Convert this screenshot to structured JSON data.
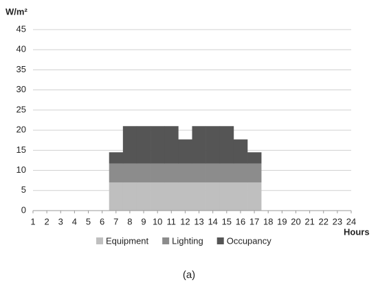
{
  "chart_data": {
    "type": "stacked-bar",
    "y_label": "W/m²",
    "x_label": "Hours",
    "caption": "(a)",
    "x": [
      1,
      2,
      3,
      4,
      5,
      6,
      7,
      8,
      9,
      10,
      11,
      12,
      13,
      14,
      15,
      16,
      17,
      18,
      19,
      20,
      21,
      22,
      23,
      24
    ],
    "xlim": [
      1,
      24
    ],
    "xticks": [
      1,
      2,
      3,
      4,
      5,
      6,
      7,
      8,
      9,
      10,
      11,
      12,
      13,
      14,
      15,
      16,
      17,
      18,
      19,
      20,
      21,
      22,
      23,
      24
    ],
    "ylim": [
      0,
      45
    ],
    "yticks": [
      0,
      5,
      10,
      15,
      20,
      25,
      30,
      35,
      40,
      45
    ],
    "grid": true,
    "legend": "bottom",
    "series": [
      {
        "name": "Equipment",
        "color": "#bfbfbf",
        "values": [
          0,
          0,
          0,
          0,
          0,
          0,
          7,
          7,
          7,
          7,
          7,
          7,
          7,
          7,
          7,
          7,
          7,
          0,
          0,
          0,
          0,
          0,
          0,
          0
        ]
      },
      {
        "name": "Lighting",
        "color": "#8c8c8c",
        "values": [
          0,
          0,
          0,
          0,
          0,
          0,
          4.7,
          4.7,
          4.7,
          4.7,
          4.7,
          4.7,
          4.7,
          4.7,
          4.7,
          4.7,
          4.7,
          0,
          0,
          0,
          0,
          0,
          0,
          0
        ]
      },
      {
        "name": "Occupancy",
        "color": "#555555",
        "values": [
          0,
          0,
          0,
          0,
          0,
          0,
          2.8,
          9.3,
          9.3,
          9.3,
          9.3,
          6,
          9.3,
          9.3,
          9.3,
          6,
          2.8,
          0,
          0,
          0,
          0,
          0,
          0,
          0
        ]
      }
    ]
  }
}
